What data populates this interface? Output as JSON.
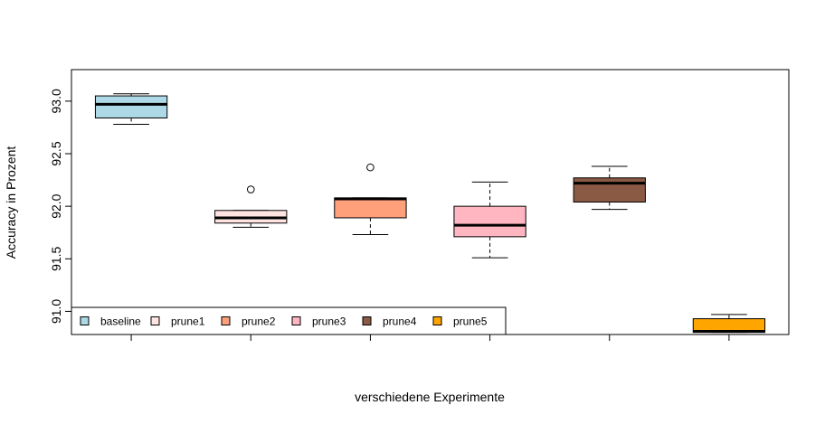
{
  "chart_data": {
    "type": "boxplot",
    "title": "",
    "xlabel": "verschiedene Experimente",
    "ylabel": "Accuracy in Prozent",
    "ylim": [
      90.78,
      93.3
    ],
    "yticks": [
      91.0,
      91.5,
      92.0,
      92.5,
      93.0
    ],
    "ytick_labels": [
      "91.0",
      "91.5",
      "92.0",
      "92.5",
      "93.0"
    ],
    "grid": false,
    "legend_position": "bottom-left",
    "series": [
      {
        "name": "baseline",
        "color": "#ADD8E6",
        "whisker_low": 92.78,
        "q1": 92.84,
        "median": 92.97,
        "q3": 93.05,
        "whisker_high": 93.07,
        "outliers": []
      },
      {
        "name": "prune1",
        "color": "#FFE4E1",
        "whisker_low": 91.8,
        "q1": 91.84,
        "median": 91.89,
        "q3": 91.96,
        "whisker_high": 91.96,
        "outliers": [
          92.16
        ]
      },
      {
        "name": "prune2",
        "color": "#FFA07A",
        "whisker_low": 91.73,
        "q1": 91.89,
        "median": 92.07,
        "q3": 92.08,
        "whisker_high": 92.08,
        "outliers": [
          92.37
        ]
      },
      {
        "name": "prune3",
        "color": "#FFB6C1",
        "whisker_low": 91.51,
        "q1": 91.71,
        "median": 91.82,
        "q3": 92.0,
        "whisker_high": 92.23,
        "outliers": []
      },
      {
        "name": "prune4",
        "color": "#8B5A44",
        "whisker_low": 91.97,
        "q1": 92.04,
        "median": 92.22,
        "q3": 92.27,
        "whisker_high": 92.38,
        "outliers": []
      },
      {
        "name": "prune5",
        "color": "#FFA500",
        "whisker_low": 90.8,
        "q1": 90.8,
        "median": 90.81,
        "q3": 90.93,
        "whisker_high": 90.97,
        "outliers": []
      }
    ]
  }
}
